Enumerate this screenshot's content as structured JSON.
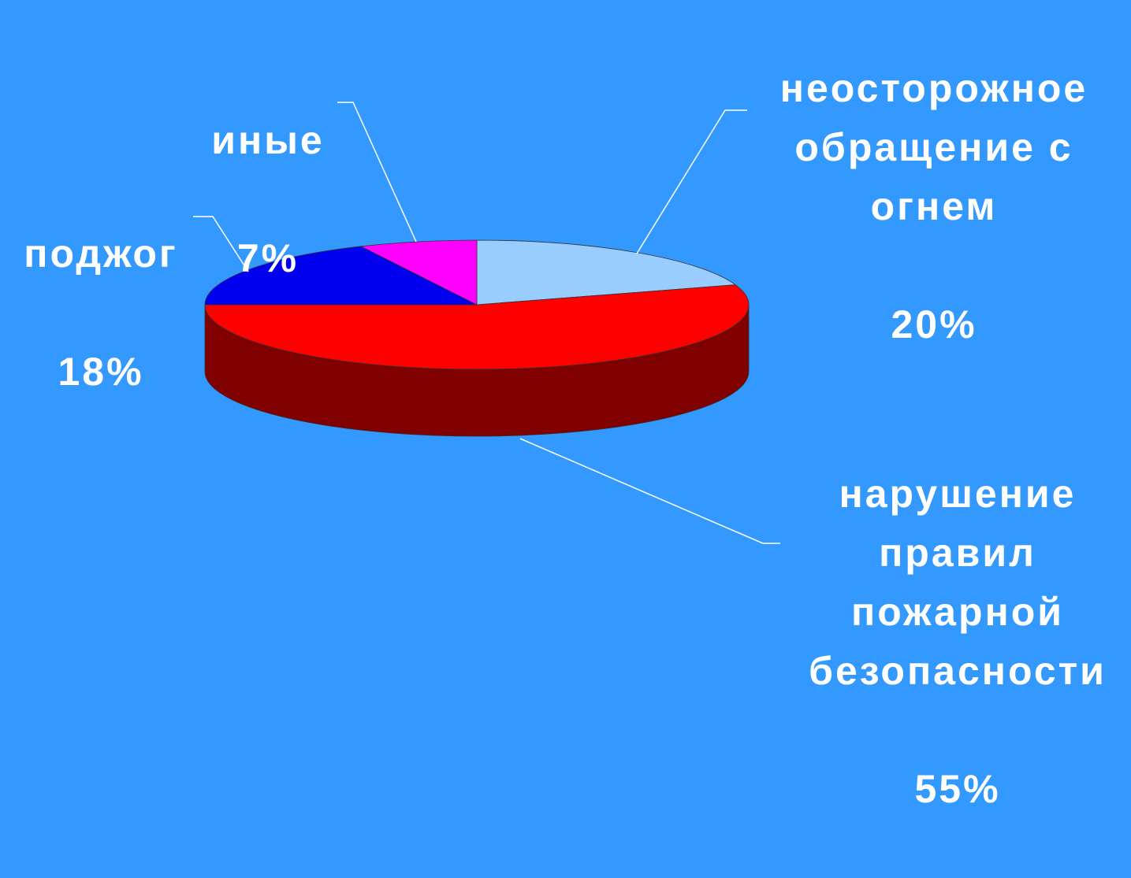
{
  "chart_data": {
    "type": "pie",
    "categories": [
      "неосторожное\nобращение с\nогнем",
      "нарушение\nправил\nпожарной\nбезопасности",
      "поджог",
      "иные"
    ],
    "values": [
      20,
      55,
      18,
      7
    ],
    "value_labels": [
      "20%",
      "55%",
      "18%",
      "7%"
    ],
    "colors": [
      "#99ccff",
      "#ff0000",
      "#0000ee",
      "#ff00ff"
    ]
  }
}
